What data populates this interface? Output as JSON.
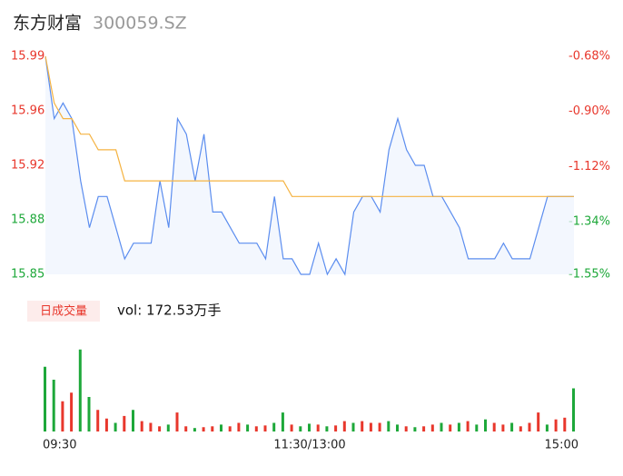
{
  "chart_data": {
    "type": "intraday",
    "title": "东方财富",
    "subtitle": "300059.SZ",
    "x": [
      0,
      4,
      8,
      12,
      16,
      20,
      24,
      28,
      32,
      36,
      40,
      44,
      48,
      52,
      56,
      60,
      64,
      68,
      72,
      76,
      80,
      84,
      88,
      92,
      96,
      100,
      104,
      108,
      112,
      116,
      120,
      124,
      128,
      132,
      136,
      140,
      144,
      148,
      152,
      156,
      160,
      164,
      168,
      172,
      176,
      180,
      184,
      188,
      192,
      196,
      200,
      204,
      208,
      212,
      216,
      220,
      224,
      228,
      232,
      236,
      240
    ],
    "xlim": [
      0,
      240
    ],
    "xticks": [
      {
        "value": 0,
        "label": "09:30"
      },
      {
        "value": 120,
        "label": "11:30/13:00"
      },
      {
        "value": 240,
        "label": "15:00"
      }
    ],
    "ylim": [
      15.85,
      15.99
    ],
    "yticks": [
      15.99,
      {
        "value": 15.955,
        "label": "15.96"
      },
      15.92,
      {
        "value": 15.885,
        "label": "15.88"
      },
      15.85
    ],
    "y2lim": [
      -1.55,
      -0.68
    ],
    "y2ticks": [
      {
        "value": -0.68,
        "label": "-0.68%"
      },
      {
        "value": -0.9,
        "label": "-0.90%"
      },
      {
        "value": -1.12,
        "label": "-1.12%"
      },
      {
        "value": -1.34,
        "label": "-1.34%"
      },
      {
        "value": -1.55,
        "label": "-1.55%"
      }
    ],
    "series": [
      {
        "color": "#5b8def",
        "values": [
          15.99,
          15.95,
          15.96,
          15.95,
          15.91,
          15.88,
          15.9,
          15.9,
          15.88,
          15.86,
          15.87,
          15.87,
          15.87,
          15.91,
          15.88,
          15.95,
          15.94,
          15.91,
          15.94,
          15.89,
          15.89,
          15.88,
          15.87,
          15.87,
          15.87,
          15.86,
          15.9,
          15.86,
          15.86,
          15.85,
          15.85,
          15.87,
          15.85,
          15.86,
          15.85,
          15.89,
          15.9,
          15.9,
          15.89,
          15.93,
          15.95,
          15.93,
          15.92,
          15.92,
          15.9,
          15.9,
          15.89,
          15.88,
          15.86,
          15.86,
          15.86,
          15.86,
          15.87,
          15.86,
          15.86,
          15.86,
          15.88,
          15.9,
          15.9,
          15.9,
          15.9
        ]
      },
      {
        "color": "#f5b342",
        "values": [
          15.99,
          15.96,
          15.95,
          15.95,
          15.94,
          15.94,
          15.93,
          15.93,
          15.93,
          15.91,
          15.91,
          15.91,
          15.91,
          15.91,
          15.91,
          15.91,
          15.91,
          15.91,
          15.91,
          15.91,
          15.91,
          15.91,
          15.91,
          15.91,
          15.91,
          15.91,
          15.91,
          15.91,
          15.9,
          15.9,
          15.9,
          15.9,
          15.9,
          15.9,
          15.9,
          15.9,
          15.9,
          15.9,
          15.9,
          15.9,
          15.9,
          15.9,
          15.9,
          15.9,
          15.9,
          15.9,
          15.9,
          15.9,
          15.9,
          15.9,
          15.9,
          15.9,
          15.9,
          15.9,
          15.9,
          15.9,
          15.9,
          15.9,
          15.9,
          15.9,
          15.9
        ]
      }
    ],
    "volume": {
      "label": "日成交量",
      "summary": "vol: 172.53万手",
      "ylim": [
        0,
        100
      ],
      "values": [
        75,
        60,
        35,
        45,
        95,
        40,
        25,
        15,
        10,
        18,
        25,
        12,
        10,
        6,
        8,
        22,
        6,
        4,
        5,
        6,
        8,
        6,
        10,
        8,
        6,
        7,
        10,
        22,
        8,
        6,
        9,
        8,
        6,
        7,
        12,
        10,
        12,
        10,
        10,
        12,
        8,
        6,
        5,
        6,
        8,
        10,
        8,
        10,
        12,
        8,
        14,
        10,
        8,
        10,
        6,
        10,
        22,
        8,
        14,
        16,
        50
      ],
      "colors": [
        "#1ea83a",
        "#1ea83a",
        "#e8372c",
        "#e8372c",
        "#1ea83a",
        "#1ea83a",
        "#e8372c",
        "#e8372c",
        "#1ea83a",
        "#e8372c",
        "#1ea83a",
        "#e8372c",
        "#e8372c",
        "#e8372c",
        "#1ea83a",
        "#e8372c",
        "#e8372c",
        "#1ea83a",
        "#e8372c",
        "#e8372c",
        "#1ea83a",
        "#e8372c",
        "#e8372c",
        "#1ea83a",
        "#e8372c",
        "#e8372c",
        "#1ea83a",
        "#1ea83a",
        "#e8372c",
        "#1ea83a",
        "#1ea83a",
        "#e8372c",
        "#1ea83a",
        "#e8372c",
        "#e8372c",
        "#1ea83a",
        "#e8372c",
        "#e8372c",
        "#e8372c",
        "#1ea83a",
        "#1ea83a",
        "#e8372c",
        "#1ea83a",
        "#e8372c",
        "#e8372c",
        "#1ea83a",
        "#e8372c",
        "#1ea83a",
        "#e8372c",
        "#1ea83a",
        "#1ea83a",
        "#e8372c",
        "#e8372c",
        "#1ea83a",
        "#e8372c",
        "#e8372c",
        "#e8372c",
        "#1ea83a",
        "#e8372c",
        "#e8372c",
        "#1ea83a"
      ]
    }
  }
}
